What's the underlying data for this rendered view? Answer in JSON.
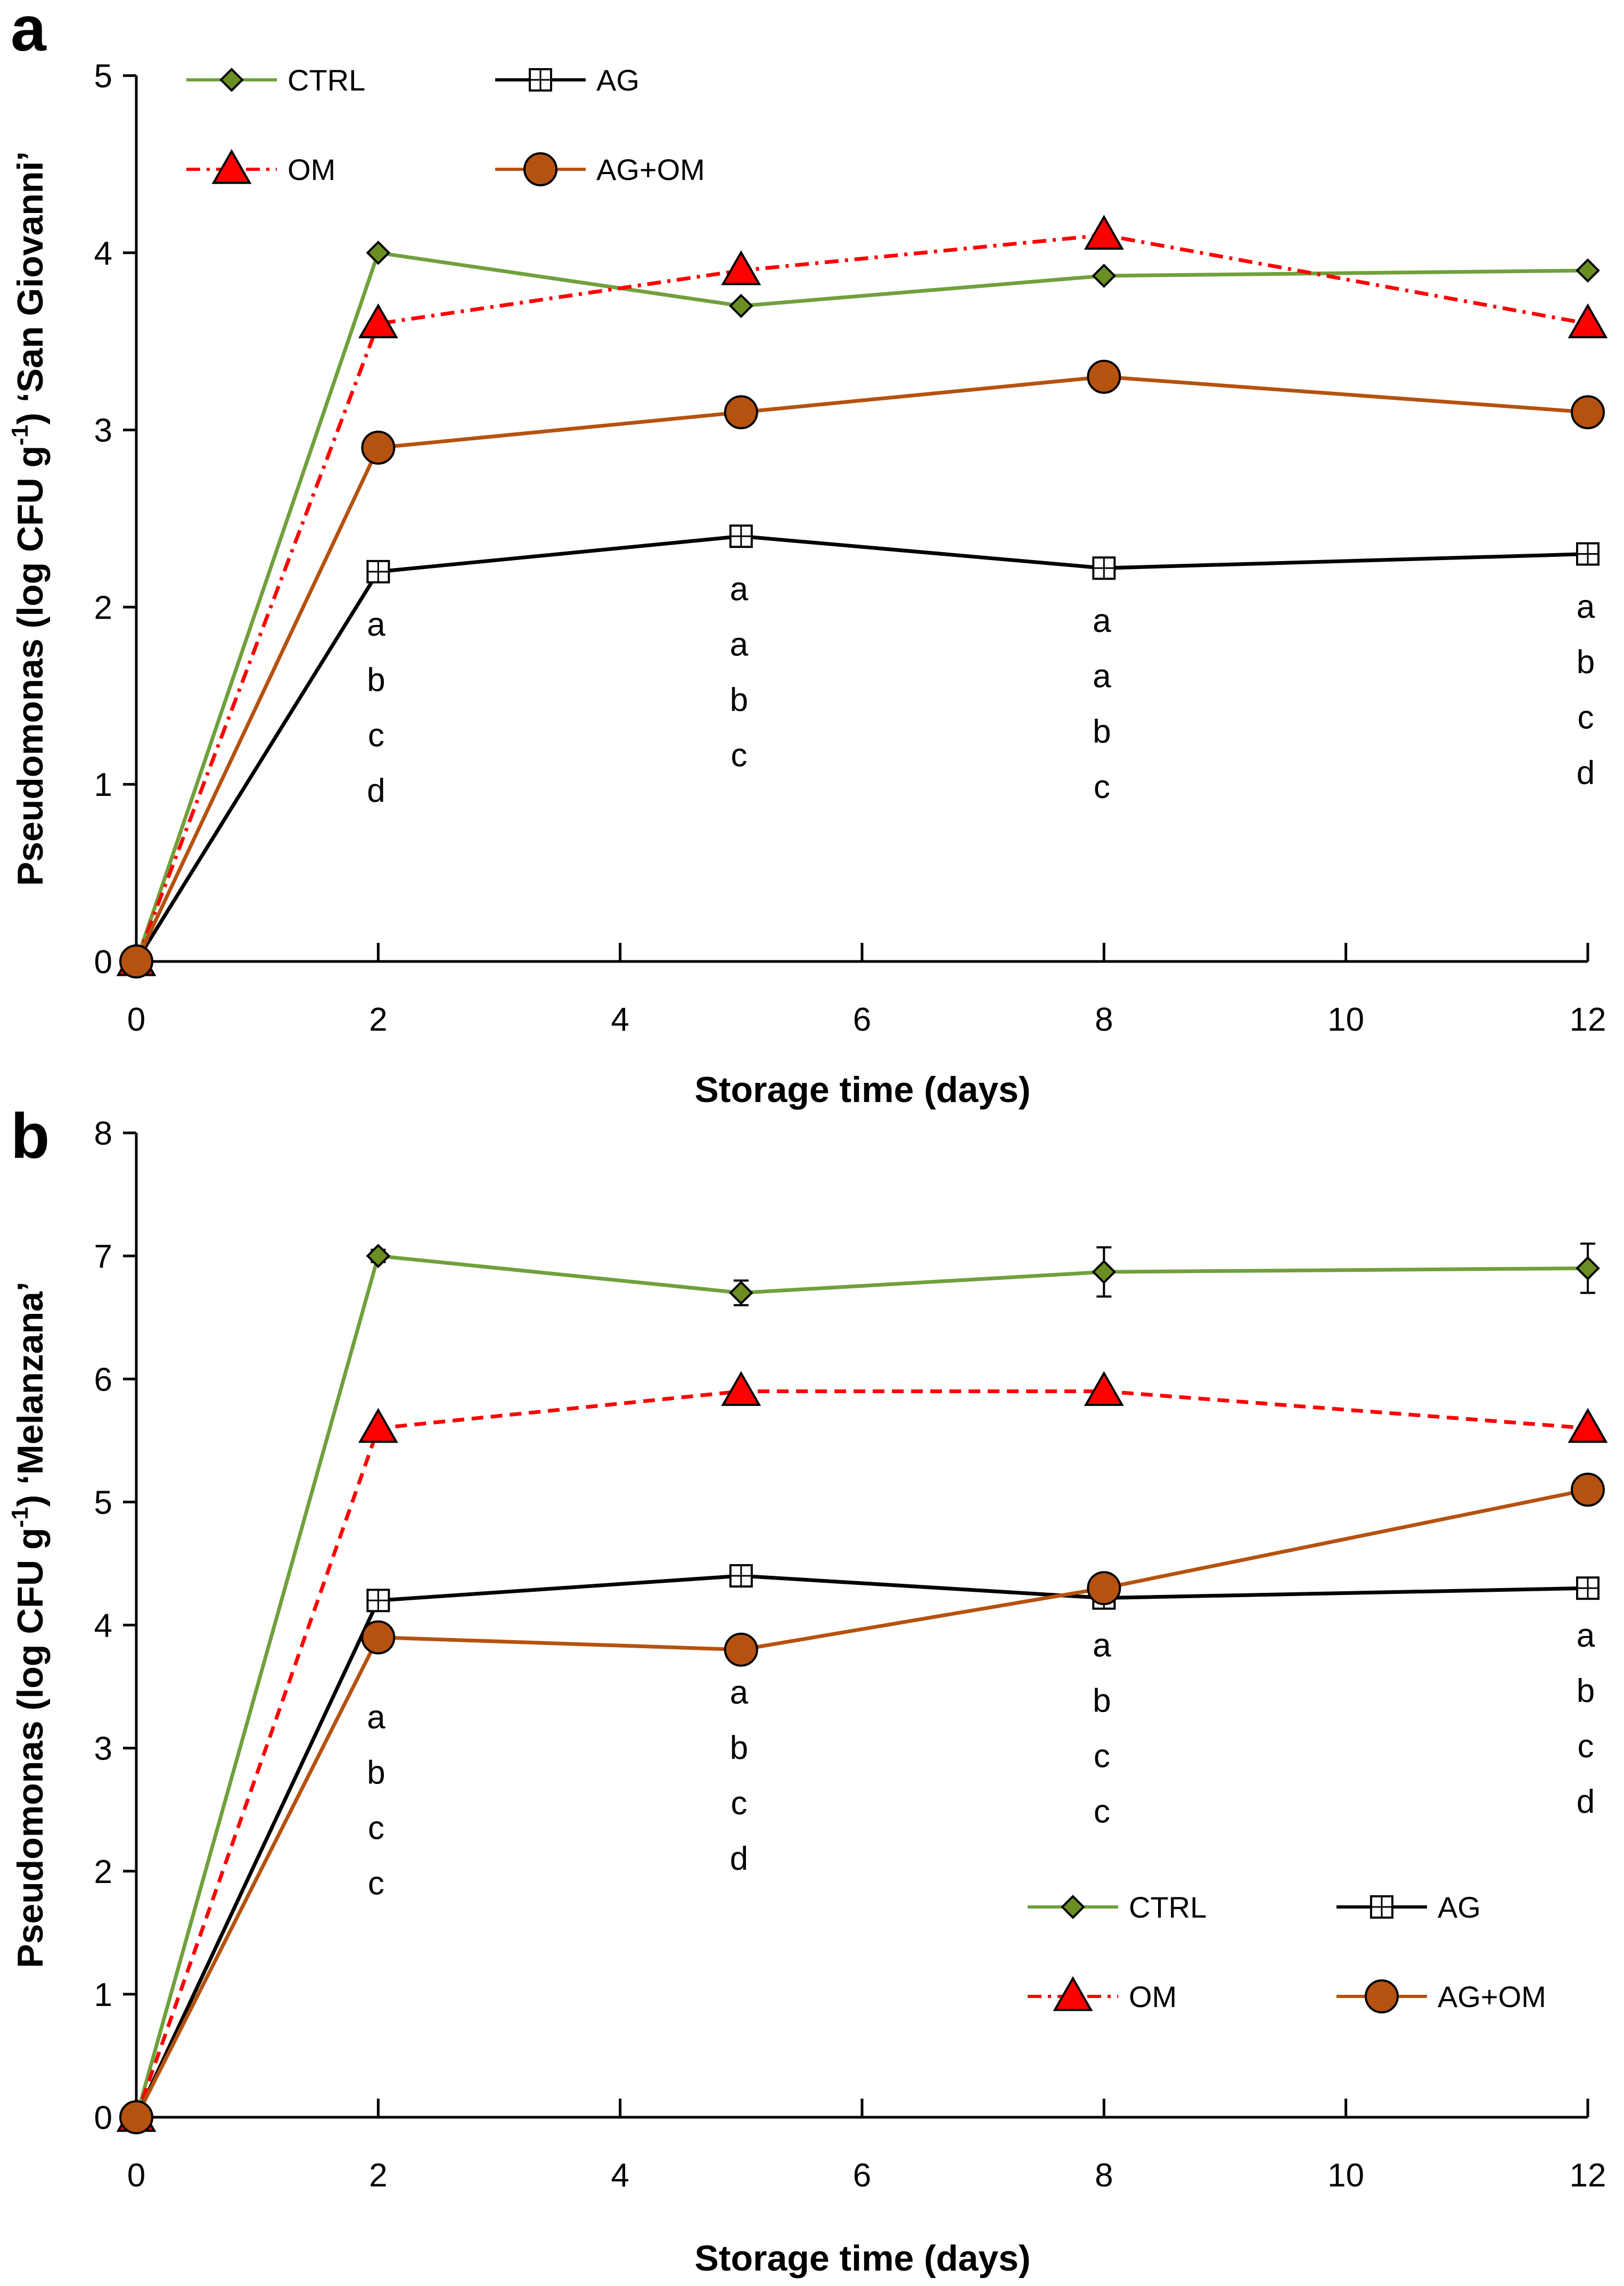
{
  "chart_data": [
    {
      "type": "line",
      "panel_label": "a",
      "xlabel": "Storage time (days)",
      "ylabel": {
        "main": "Pseudomonas (log CFU g",
        "sup": "-1",
        "tail": ") ‘San Giovanni’"
      },
      "xlim": [
        0,
        12
      ],
      "ylim": [
        0,
        5
      ],
      "xticks": [
        0,
        2,
        4,
        6,
        8,
        10,
        12
      ],
      "yticks": [
        0,
        1,
        2,
        3,
        4,
        5
      ],
      "x": [
        0,
        2,
        5,
        8,
        12
      ],
      "legend_position": "top-left",
      "series": [
        {
          "name": "CTRL",
          "values": [
            0,
            4.0,
            3.7,
            3.87,
            3.9
          ],
          "color": "#70a03c",
          "marker": "diamond",
          "marker_fill": "#6b8e23",
          "line": "solid"
        },
        {
          "name": "AG",
          "values": [
            0,
            2.2,
            2.4,
            2.22,
            2.3
          ],
          "color": "#000000",
          "marker": "square",
          "marker_fill": "#ffffff",
          "line": "solid"
        },
        {
          "name": "OM",
          "values": [
            0,
            3.6,
            3.9,
            4.1,
            3.6
          ],
          "color": "#ff0000",
          "marker": "triangle",
          "marker_fill": "#ff0000",
          "line": "dash-dot"
        },
        {
          "name": "AG+OM",
          "values": [
            0,
            2.9,
            3.1,
            3.3,
            3.1
          ],
          "color": "#b5520f",
          "marker": "circle",
          "marker_fill": "#b5520f",
          "line": "solid"
        }
      ],
      "annotations": [
        {
          "x": 2,
          "letters": [
            "a",
            "b",
            "c",
            "d"
          ]
        },
        {
          "x": 5,
          "letters": [
            "a",
            "a",
            "b",
            "c"
          ]
        },
        {
          "x": 8,
          "letters": [
            "a",
            "a",
            "b",
            "c"
          ]
        },
        {
          "x": 12,
          "letters": [
            "a",
            "b",
            "c",
            "d"
          ]
        }
      ]
    },
    {
      "type": "line",
      "panel_label": "b",
      "xlabel": "Storage time (days)",
      "ylabel": {
        "main": "Pseudomonas (log CFU g",
        "sup": "-1",
        "tail": ") ‘Melanzana’"
      },
      "xlim": [
        0,
        12
      ],
      "ylim": [
        0,
        8
      ],
      "xticks": [
        0,
        2,
        4,
        6,
        8,
        10,
        12
      ],
      "yticks": [
        0,
        1,
        2,
        3,
        4,
        5,
        6,
        7,
        8
      ],
      "x": [
        0,
        2,
        5,
        8,
        12
      ],
      "legend_position": "bottom-right",
      "series": [
        {
          "name": "CTRL",
          "values": [
            0,
            7.0,
            6.7,
            6.87,
            6.9
          ],
          "errors": [
            0,
            0.05,
            0.1,
            0.2,
            0.2
          ],
          "color": "#70a03c",
          "marker": "diamond",
          "marker_fill": "#6b8e23",
          "line": "solid"
        },
        {
          "name": "AG",
          "values": [
            0,
            4.2,
            4.4,
            4.22,
            4.3
          ],
          "color": "#000000",
          "marker": "square",
          "marker_fill": "#ffffff",
          "line": "solid"
        },
        {
          "name": "OM",
          "values": [
            0,
            5.6,
            5.9,
            5.9,
            5.6
          ],
          "color": "#ff0000",
          "marker": "triangle",
          "marker_fill": "#ff0000",
          "line": "dashed"
        },
        {
          "name": "AG+OM",
          "values": [
            0,
            3.9,
            3.8,
            4.3,
            5.1
          ],
          "color": "#b5520f",
          "marker": "circle",
          "marker_fill": "#b5520f",
          "line": "solid"
        }
      ],
      "annotations": [
        {
          "x": 2,
          "letters": [
            "a",
            "b",
            "c",
            "c"
          ]
        },
        {
          "x": 5,
          "letters": [
            "a",
            "b",
            "c",
            "d"
          ]
        },
        {
          "x": 8,
          "letters": [
            "a",
            "b",
            "c",
            "c"
          ]
        },
        {
          "x": 12,
          "letters": [
            "a",
            "b",
            "c",
            "d"
          ]
        }
      ]
    }
  ]
}
